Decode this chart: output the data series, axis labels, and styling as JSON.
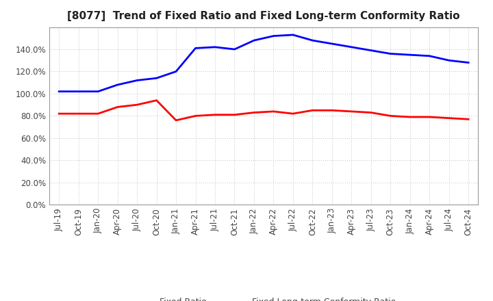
{
  "title": "[8077]  Trend of Fixed Ratio and Fixed Long-term Conformity Ratio",
  "x_labels": [
    "Jul-19",
    "Oct-19",
    "Jan-20",
    "Apr-20",
    "Jul-20",
    "Oct-20",
    "Jan-21",
    "Apr-21",
    "Jul-21",
    "Oct-21",
    "Jan-22",
    "Apr-22",
    "Jul-22",
    "Oct-22",
    "Jan-23",
    "Apr-23",
    "Jul-23",
    "Oct-23",
    "Jan-24",
    "Apr-24",
    "Jul-24",
    "Oct-24"
  ],
  "fixed_ratio": [
    102,
    102,
    102,
    108,
    112,
    114,
    120,
    141,
    142,
    140,
    148,
    152,
    153,
    148,
    145,
    142,
    139,
    136,
    135,
    134,
    130,
    128
  ],
  "fixed_lt_ratio": [
    82,
    82,
    82,
    88,
    90,
    94,
    76,
    80,
    81,
    81,
    83,
    84,
    82,
    85,
    85,
    84,
    83,
    80,
    79,
    79,
    78,
    77
  ],
  "ylim": [
    0,
    160
  ],
  "yticks": [
    0,
    20,
    40,
    60,
    80,
    100,
    120,
    140
  ],
  "line_color_fixed": "#0000FF",
  "line_color_lt": "#FF0000",
  "line_width": 2.0,
  "legend_fixed": "Fixed Ratio",
  "legend_lt": "Fixed Long-term Conformity Ratio",
  "bg_color": "#FFFFFF",
  "grid_color": "#C0C0C0",
  "title_fontsize": 11,
  "axis_fontsize": 8.5,
  "legend_fontsize": 9
}
